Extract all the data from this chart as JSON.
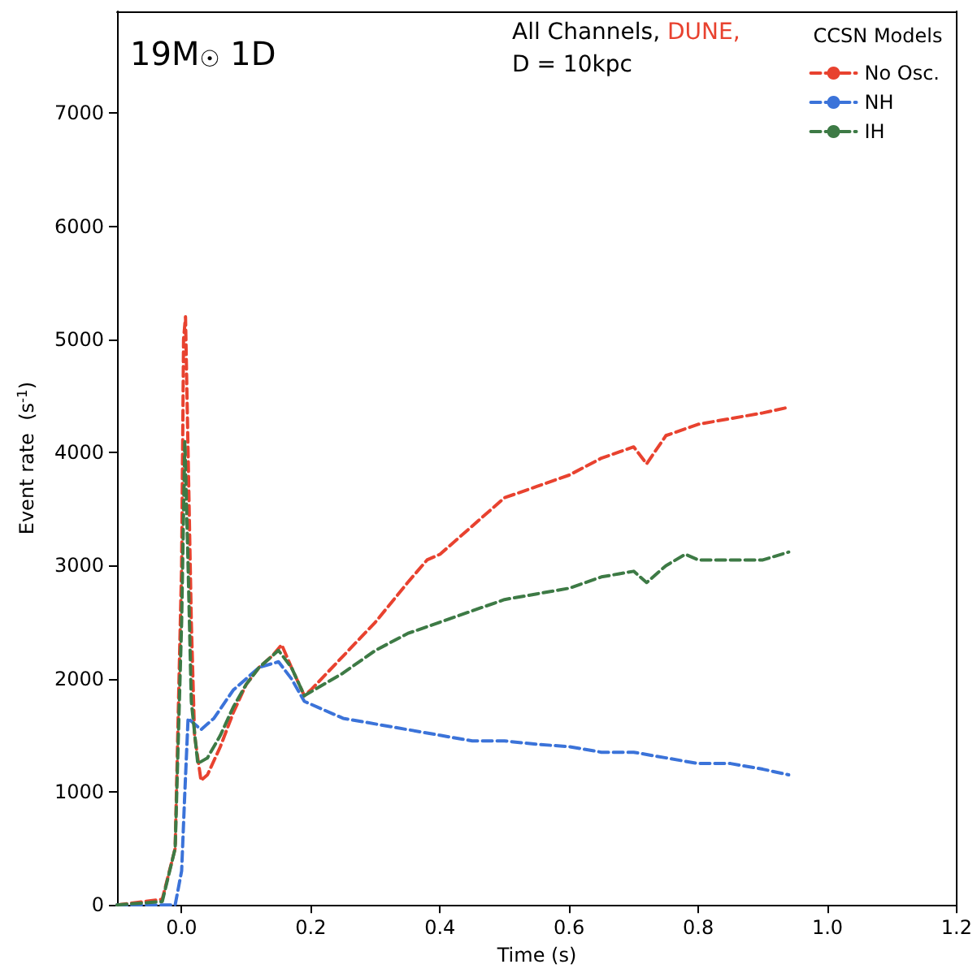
{
  "chart_data": {
    "type": "line",
    "title": "19M$_{☉}$ 1D",
    "xlabel": "Time (s)",
    "ylabel": "Event rate  (s$^{-1}$)",
    "legend_title": "CCSN Models",
    "annotations": [
      "All Channels, DUNE,",
      "D = 10kpc"
    ],
    "xlim": [
      -0.1,
      1.2
    ],
    "ylim": [
      0,
      7900
    ],
    "xticks": [
      {
        "value": 0,
        "label": "0.0"
      },
      0.2,
      0.4,
      0.6,
      0.8,
      {
        "value": 1,
        "label": "1.0"
      },
      1.2
    ],
    "yticks": [
      0,
      1000,
      2000,
      3000,
      4000,
      5000,
      6000,
      7000
    ],
    "grid": false,
    "legend": "top right",
    "marker": "none",
    "line_style": "dashed",
    "series": [
      {
        "name": "No Osc.",
        "color": "#e8422f",
        "x": [
          -0.1,
          -0.03,
          -0.01,
          0.0,
          0.003,
          0.006,
          0.01,
          0.015,
          0.02,
          0.03,
          0.04,
          0.06,
          0.08,
          0.1,
          0.12,
          0.14,
          0.155,
          0.17,
          0.19,
          0.2,
          0.25,
          0.3,
          0.35,
          0.38,
          0.4,
          0.45,
          0.5,
          0.55,
          0.6,
          0.65,
          0.7,
          0.72,
          0.75,
          0.8,
          0.85,
          0.9,
          0.94
        ],
        "values": [
          0,
          50,
          500,
          3000,
          5000,
          5200,
          4000,
          2500,
          1500,
          1100,
          1150,
          1400,
          1700,
          1950,
          2100,
          2200,
          2300,
          2100,
          1850,
          1900,
          2200,
          2500,
          2850,
          3050,
          3100,
          3350,
          3600,
          3700,
          3800,
          3950,
          4050,
          3900,
          4150,
          4250,
          4300,
          4350,
          4400
        ]
      },
      {
        "name": "NH",
        "color": "#3b73d9",
        "x": [
          -0.1,
          -0.01,
          0.0,
          0.005,
          0.01,
          0.03,
          0.05,
          0.08,
          0.1,
          0.12,
          0.15,
          0.17,
          0.19,
          0.25,
          0.3,
          0.35,
          0.4,
          0.45,
          0.5,
          0.55,
          0.6,
          0.65,
          0.7,
          0.75,
          0.8,
          0.85,
          0.9,
          0.94
        ],
        "values": [
          0,
          0,
          300,
          1000,
          1650,
          1550,
          1650,
          1900,
          2000,
          2100,
          2150,
          2000,
          1800,
          1650,
          1600,
          1550,
          1500,
          1450,
          1450,
          1420,
          1400,
          1350,
          1350,
          1300,
          1250,
          1250,
          1200,
          1150
        ]
      },
      {
        "name": "IH",
        "color": "#3d7a45",
        "x": [
          -0.1,
          -0.03,
          -0.01,
          0.0,
          0.005,
          0.01,
          0.015,
          0.025,
          0.04,
          0.06,
          0.08,
          0.1,
          0.12,
          0.15,
          0.17,
          0.19,
          0.25,
          0.3,
          0.35,
          0.4,
          0.45,
          0.5,
          0.55,
          0.6,
          0.65,
          0.7,
          0.72,
          0.75,
          0.78,
          0.8,
          0.85,
          0.9,
          0.94
        ],
        "values": [
          0,
          30,
          500,
          2500,
          4100,
          3000,
          1800,
          1250,
          1300,
          1500,
          1750,
          1950,
          2100,
          2250,
          2100,
          1850,
          2050,
          2250,
          2400,
          2500,
          2600,
          2700,
          2750,
          2800,
          2900,
          2950,
          2850,
          3000,
          3100,
          3050,
          3050,
          3050,
          3120
        ]
      }
    ]
  }
}
